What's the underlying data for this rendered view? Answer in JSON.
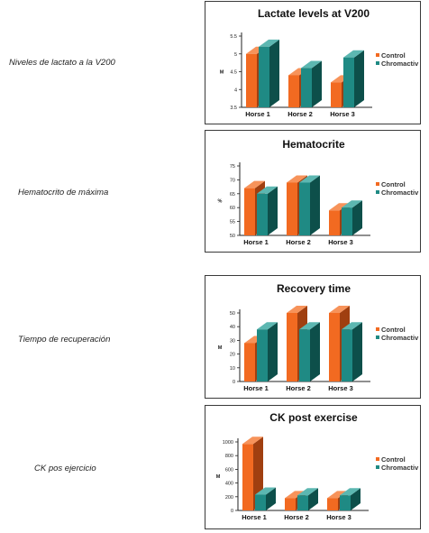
{
  "colors": {
    "control_front": "#f26a21",
    "control_top": "#f7935a",
    "control_side": "#a03f10",
    "chromo_front": "#1f8a84",
    "chromo_top": "#5cb7b1",
    "chromo_side": "#0d4f4a",
    "axis": "#222222"
  },
  "side_labels": [
    "Niveles de lactato a la V200",
    "Hematocrito de máxima",
    "Tiempo de recuperación",
    "CK pos ejercicio"
  ],
  "chart_data": [
    {
      "type": "bar",
      "title": "Lactate levels at V200",
      "ylabel": "M",
      "categories": [
        "Horse 1",
        "Horse 2",
        "Horse 3"
      ],
      "series": [
        {
          "name": "Control",
          "values": [
            5.0,
            4.4,
            4.2
          ]
        },
        {
          "name": "Chromactiv",
          "values": [
            5.2,
            4.6,
            4.9
          ]
        }
      ],
      "ylim": [
        3.5,
        5.5
      ],
      "yticks": [
        "3.5",
        "4",
        "4.5",
        "5",
        "5.5"
      ],
      "grid": false,
      "legend_position": "right"
    },
    {
      "type": "bar",
      "title": "Hematocrite",
      "ylabel": "%",
      "categories": [
        "Horse 1",
        "Horse 2",
        "Horse 3"
      ],
      "series": [
        {
          "name": "Control",
          "values": [
            67,
            69,
            59
          ]
        },
        {
          "name": "Chromactiv",
          "values": [
            65,
            69,
            60
          ]
        }
      ],
      "ylim": [
        50,
        75
      ],
      "yticks": [
        "50",
        "55",
        "60",
        "65",
        "70",
        "75"
      ],
      "grid": false,
      "legend_position": "right"
    },
    {
      "type": "bar",
      "title": "Recovery time",
      "ylabel": "M",
      "categories": [
        "Horse 1",
        "Horse 2",
        "Horse 3"
      ],
      "series": [
        {
          "name": "Control",
          "values": [
            28,
            50,
            50
          ]
        },
        {
          "name": "Chromactiv",
          "values": [
            38,
            38,
            38
          ]
        }
      ],
      "ylim": [
        0,
        50
      ],
      "yticks": [
        "0",
        "10",
        "20",
        "30",
        "40",
        "50"
      ],
      "grid": false,
      "legend_position": "right"
    },
    {
      "type": "bar",
      "title": "CK post exercise",
      "ylabel": "M",
      "categories": [
        "Horse 1",
        "Horse 2",
        "Horse 3"
      ],
      "series": [
        {
          "name": "Control",
          "values": [
            970,
            180,
            180
          ]
        },
        {
          "name": "Chromactiv",
          "values": [
            230,
            220,
            220
          ]
        }
      ],
      "ylim": [
        0,
        1000
      ],
      "yticks": [
        "0",
        "200",
        "400",
        "600",
        "800",
        "1000"
      ],
      "grid": false,
      "legend_position": "right"
    }
  ]
}
